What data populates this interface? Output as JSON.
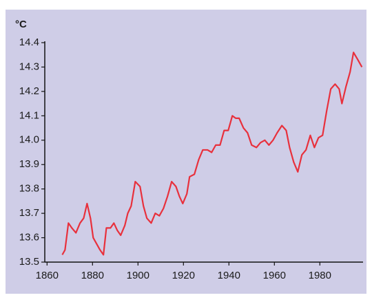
{
  "chart_data": {
    "type": "line",
    "y_unit": "°C",
    "xlim": [
      1859,
      1999
    ],
    "xticks": [
      1860,
      1880,
      1900,
      1920,
      1940,
      1960,
      1980
    ],
    "ylim": [
      13.5,
      14.4
    ],
    "yticks": [
      13.5,
      13.6,
      13.7,
      13.8,
      13.9,
      {
        "value": 14,
        "label": "14.0"
      },
      14.1,
      14.2,
      14.3,
      14.4
    ],
    "grid": false,
    "x": [
      1866.7,
      1867.9,
      1869.4,
      1870.9,
      1872.7,
      1874.5,
      1876.1,
      1877.6,
      1879.1,
      1880.3,
      1882.1,
      1883.3,
      1884.8,
      1886.1,
      1887.9,
      1889.4,
      1890.9,
      1892.4,
      1894.2,
      1895.5,
      1897.0,
      1898.8,
      1900.9,
      1902.4,
      1903.9,
      1905.8,
      1907.6,
      1909.4,
      1911.2,
      1913.0,
      1914.8,
      1916.7,
      1918.2,
      1919.7,
      1921.5,
      1922.7,
      1924.8,
      1926.7,
      1928.5,
      1930.6,
      1932.4,
      1934.2,
      1936.1,
      1937.9,
      1939.7,
      1941.5,
      1943.0,
      1944.5,
      1946.4,
      1948.2,
      1950.0,
      1952.1,
      1953.9,
      1955.8,
      1957.6,
      1959.4,
      1961.2,
      1963.3,
      1965.2,
      1966.7,
      1968.5,
      1970.3,
      1972.1,
      1973.9,
      1975.8,
      1977.6,
      1979.4,
      1981.2,
      1983.0,
      1984.8,
      1986.7,
      1988.5,
      1989.7,
      1991.5,
      1993.3,
      1994.8,
      1996.7,
      1998.5
    ],
    "series": [
      {
        "color": "#e8303c",
        "values": [
          13.53,
          13.55,
          13.66,
          13.64,
          13.62,
          13.66,
          13.68,
          13.74,
          13.68,
          13.6,
          13.57,
          13.55,
          13.53,
          13.64,
          13.64,
          13.66,
          13.63,
          13.61,
          13.65,
          13.7,
          13.73,
          13.83,
          13.81,
          13.73,
          13.68,
          13.66,
          13.7,
          13.69,
          13.72,
          13.77,
          13.83,
          13.81,
          13.77,
          13.74,
          13.78,
          13.85,
          13.86,
          13.92,
          13.96,
          13.96,
          13.95,
          13.98,
          13.98,
          14.04,
          14.04,
          14.1,
          14.09,
          14.09,
          14.05,
          14.03,
          13.98,
          13.97,
          13.99,
          14.0,
          13.98,
          14.0,
          14.03,
          14.06,
          14.04,
          13.97,
          13.91,
          13.87,
          13.94,
          13.96,
          14.02,
          13.97,
          14.01,
          14.02,
          14.12,
          14.21,
          14.23,
          14.21,
          14.15,
          14.22,
          14.28,
          14.36,
          14.33,
          14.3
        ]
      }
    ]
  }
}
